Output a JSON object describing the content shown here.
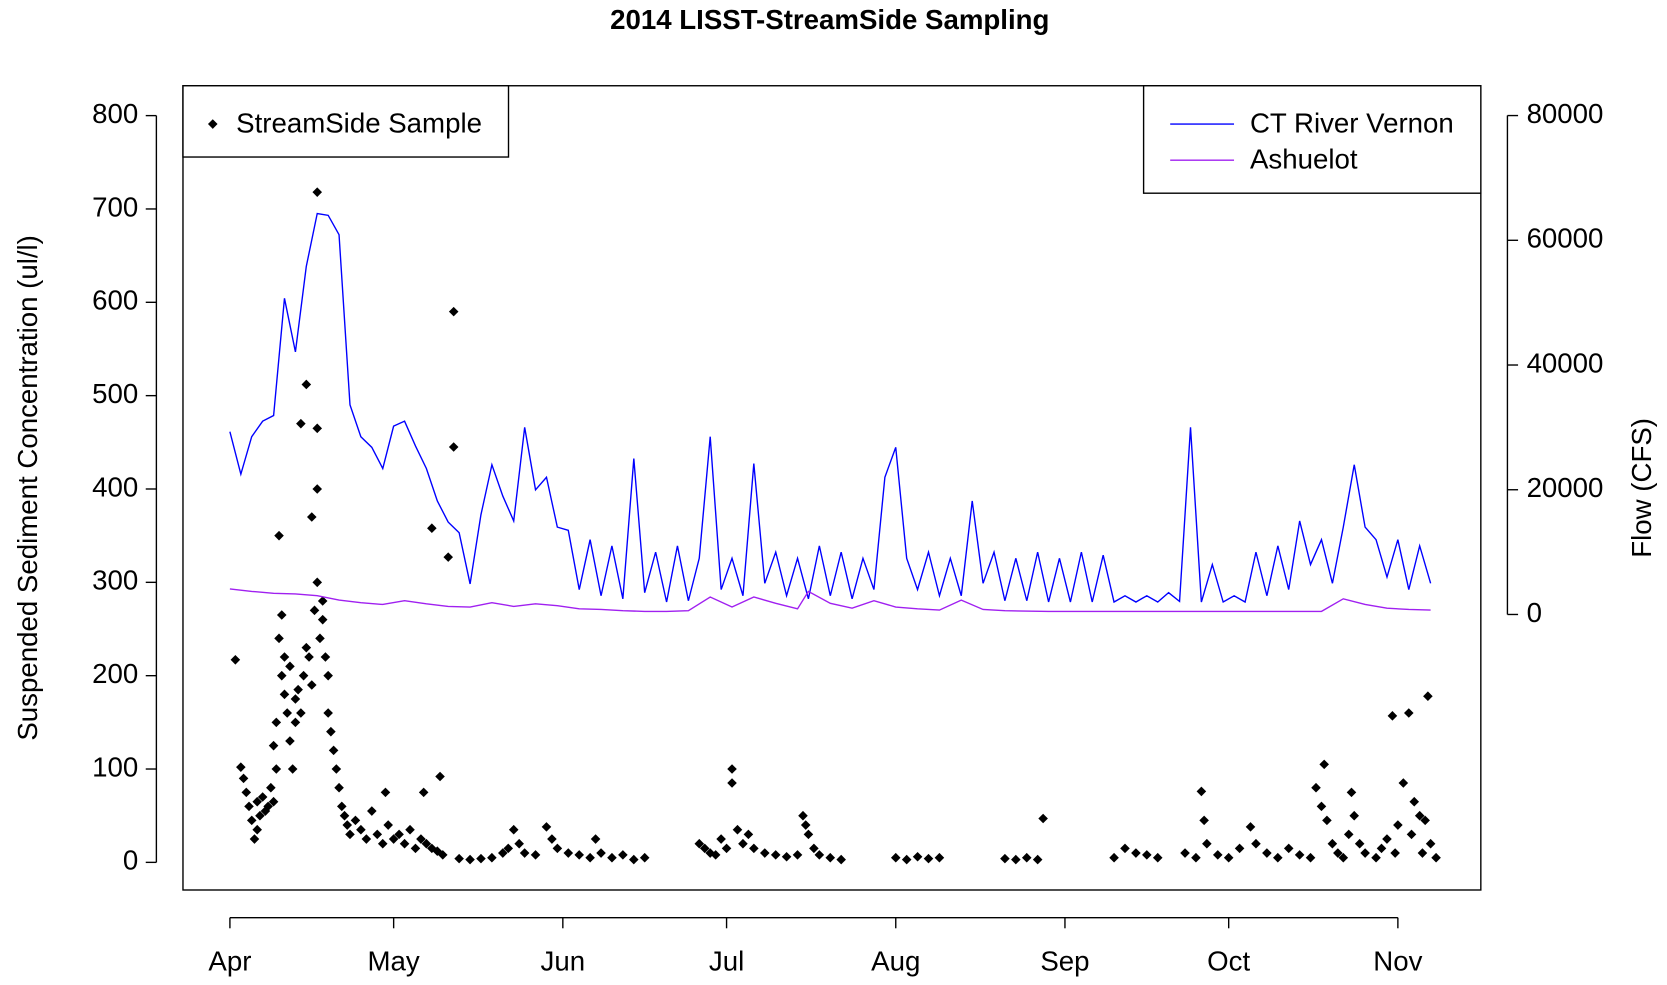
{
  "chart_data": {
    "type": "line",
    "title": "2014 LISST-StreamSide Sampling",
    "y_label": "Suspended Sediment Concentration (ul/l)",
    "y2_label": "Flow (CFS)",
    "xlim": [
      -8.6,
      229.2
    ],
    "xticks": [
      {
        "value": 0,
        "label": "Apr"
      },
      {
        "value": 30,
        "label": "May"
      },
      {
        "value": 61,
        "label": "Jun"
      },
      {
        "value": 91,
        "label": "Jul"
      },
      {
        "value": 122,
        "label": "Aug"
      },
      {
        "value": 153,
        "label": "Sep"
      },
      {
        "value": 183,
        "label": "Oct"
      },
      {
        "value": 214,
        "label": "Nov"
      }
    ],
    "ylim": [
      -29.6,
      832
    ],
    "yticks": [
      0,
      100,
      200,
      300,
      400,
      500,
      600,
      700,
      800
    ],
    "y2lim": [
      -44180,
      84780
    ],
    "y2ticks": [
      0,
      20000,
      40000,
      60000,
      80000
    ],
    "grid": false,
    "series": [
      {
        "name": "StreamSide Sample",
        "type": "scatter",
        "color": "#000000",
        "legend": "topleft",
        "x": [
          1,
          2,
          2.5,
          3,
          3.5,
          4,
          4.5,
          5,
          5,
          5.5,
          6,
          6.5,
          7,
          7.5,
          8,
          8,
          8.5,
          8.5,
          9,
          9,
          9.5,
          9.5,
          10,
          10,
          10.5,
          11,
          11,
          11.5,
          12,
          12,
          12.5,
          13,
          13,
          13.5,
          14,
          14,
          14.5,
          15,
          15,
          15.5,
          16,
          16,
          16,
          16,
          16.5,
          17,
          17,
          17.5,
          18,
          18,
          18.5,
          19,
          19.5,
          20,
          20.5,
          21,
          21.5,
          22,
          23,
          24,
          25,
          26,
          27,
          28,
          28.5,
          29,
          30,
          31,
          32,
          33,
          34,
          35,
          35.5,
          36,
          37,
          37,
          38,
          38.5,
          39,
          40,
          41,
          41,
          42,
          44,
          46,
          48,
          50,
          51,
          52,
          53,
          54,
          56,
          58,
          59,
          60,
          62,
          64,
          66,
          67,
          68,
          70,
          72,
          74,
          76,
          86,
          87,
          88,
          89,
          90,
          91,
          92,
          92,
          93,
          94,
          95,
          96,
          98,
          100,
          102,
          104,
          105,
          105.5,
          106,
          107,
          108,
          110,
          112,
          122,
          124,
          126,
          128,
          130,
          142,
          144,
          146,
          148,
          149,
          162,
          164,
          166,
          168,
          170,
          175,
          177,
          178,
          178.5,
          179,
          181,
          183,
          185,
          187,
          188,
          190,
          192,
          194,
          196,
          198,
          199,
          200,
          200.5,
          201,
          202,
          203,
          204,
          205,
          205.5,
          206,
          207,
          208,
          210,
          211,
          212,
          213,
          213.5,
          214,
          215,
          216,
          216.5,
          217,
          218,
          218.5,
          219,
          219.5,
          220,
          221
        ],
        "values": [
          217,
          102,
          90,
          75,
          60,
          45,
          25,
          35,
          65,
          50,
          70,
          55,
          60,
          80,
          65,
          125,
          150,
          100,
          350,
          240,
          265,
          200,
          220,
          180,
          160,
          210,
          130,
          100,
          150,
          175,
          185,
          470,
          160,
          200,
          512,
          230,
          220,
          370,
          190,
          270,
          718,
          465,
          400,
          300,
          240,
          280,
          260,
          220,
          160,
          200,
          140,
          120,
          100,
          80,
          60,
          50,
          40,
          30,
          45,
          35,
          25,
          55,
          30,
          20,
          75,
          40,
          25,
          30,
          20,
          35,
          15,
          25,
          75,
          20,
          358,
          15,
          12,
          92,
          8,
          327,
          590,
          445,
          4,
          3,
          4,
          5,
          10,
          15,
          35,
          20,
          10,
          8,
          38,
          25,
          15,
          10,
          8,
          5,
          25,
          10,
          5,
          8,
          3,
          5,
          20,
          15,
          10,
          8,
          25,
          15,
          100,
          85,
          35,
          20,
          30,
          15,
          10,
          8,
          6,
          8,
          50,
          40,
          30,
          15,
          8,
          5,
          3,
          5,
          3,
          6,
          4,
          5,
          4,
          3,
          5,
          3,
          47,
          5,
          15,
          10,
          8,
          5,
          10,
          5,
          76,
          45,
          20,
          8,
          5,
          15,
          38,
          20,
          10,
          5,
          15,
          8,
          5,
          80,
          60,
          105,
          45,
          20,
          10,
          5,
          30,
          75,
          50,
          20,
          10,
          5,
          15,
          25,
          157,
          10,
          40,
          85,
          160,
          30,
          65,
          50,
          10,
          45,
          178,
          20,
          5
        ]
      },
      {
        "name": "CT River Vernon",
        "type": "line",
        "axis": "y2",
        "color": "#0000ff",
        "legend": "topright",
        "x": [
          0,
          2,
          4,
          6,
          8,
          10,
          12,
          14,
          16,
          18,
          20,
          22,
          24,
          26,
          28,
          30,
          32,
          34,
          36,
          38,
          40,
          42,
          44,
          46,
          48,
          50,
          52,
          54,
          56,
          58,
          60,
          62,
          64,
          66,
          68,
          70,
          72,
          74,
          76,
          78,
          80,
          82,
          84,
          86,
          88,
          90,
          92,
          94,
          96,
          98,
          100,
          102,
          104,
          106,
          108,
          110,
          112,
          114,
          116,
          118,
          120,
          122,
          124,
          126,
          128,
          130,
          132,
          134,
          136,
          138,
          140,
          142,
          144,
          146,
          148,
          150,
          152,
          154,
          156,
          158,
          160,
          162,
          164,
          166,
          168,
          170,
          172,
          174,
          176,
          178,
          180,
          182,
          184,
          186,
          188,
          190,
          192,
          194,
          196,
          198,
          200,
          202,
          204,
          206,
          208,
          210,
          212,
          214,
          216,
          218,
          220
        ],
        "values": [
          29300,
          22500,
          28500,
          31000,
          31900,
          50700,
          42100,
          55800,
          64300,
          64000,
          60900,
          33600,
          28500,
          26800,
          23400,
          30200,
          31000,
          27000,
          23400,
          18200,
          14800,
          13100,
          4900,
          16000,
          24000,
          19000,
          15000,
          30000,
          20000,
          22000,
          14000,
          13500,
          4000,
          12000,
          3000,
          11000,
          2500,
          25000,
          3500,
          10000,
          2000,
          11000,
          2200,
          9000,
          28500,
          4000,
          9000,
          3000,
          24200,
          5000,
          10000,
          3000,
          9000,
          2500,
          11000,
          3000,
          10000,
          2500,
          9000,
          4000,
          22000,
          26800,
          9000,
          4000,
          10000,
          3000,
          9000,
          3000,
          18200,
          5000,
          10000,
          2200,
          9000,
          2200,
          10000,
          2000,
          9000,
          2000,
          10000,
          2000,
          9500,
          2000,
          3000,
          2000,
          3000,
          2000,
          3500,
          2100,
          30000,
          2000,
          8000,
          2000,
          3000,
          2000,
          10000,
          3000,
          11000,
          4000,
          15000,
          8000,
          12000,
          5000,
          14000,
          24000,
          14000,
          12000,
          6000,
          12000,
          4000,
          11000,
          5000
        ]
      },
      {
        "name": "Ashuelot",
        "type": "line",
        "axis": "y2",
        "color": "#a020f0",
        "legend": "topright",
        "x": [
          0,
          4,
          8,
          12,
          16,
          20,
          24,
          28,
          32,
          36,
          40,
          44,
          48,
          52,
          56,
          60,
          64,
          68,
          72,
          76,
          80,
          84,
          88,
          92,
          96,
          100,
          104,
          106,
          110,
          114,
          118,
          122,
          126,
          130,
          134,
          138,
          142,
          150,
          160,
          170,
          180,
          190,
          200,
          204,
          208,
          212,
          216,
          220
        ],
        "values": [
          4100,
          3700,
          3400,
          3300,
          3000,
          2300,
          1900,
          1600,
          2200,
          1700,
          1300,
          1200,
          1900,
          1300,
          1700,
          1400,
          900,
          800,
          600,
          500,
          500,
          600,
          2800,
          1200,
          2800,
          1800,
          900,
          3700,
          1800,
          1000,
          2200,
          1200,
          900,
          700,
          2300,
          800,
          600,
          500,
          500,
          500,
          500,
          500,
          500,
          2500,
          1600,
          1000,
          800,
          700
        ]
      }
    ]
  }
}
